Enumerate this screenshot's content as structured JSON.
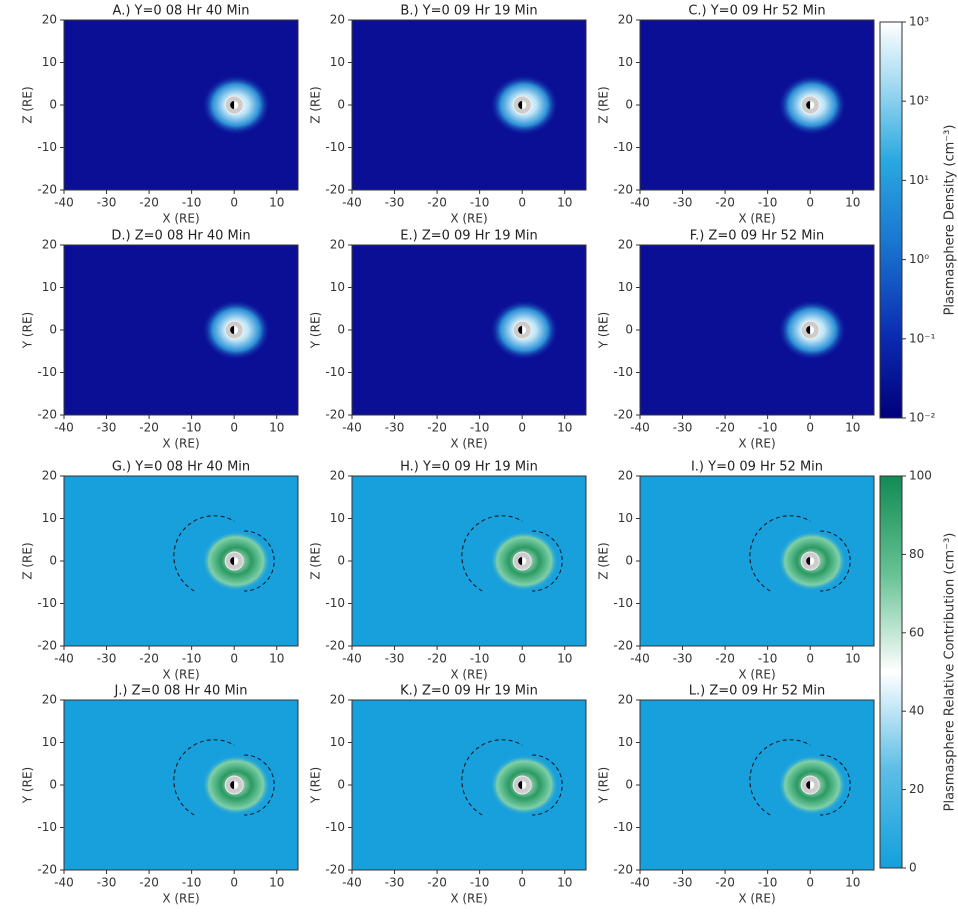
{
  "chart_data": [
    {
      "type": "heatmap",
      "title": "A.) Y=0  08 Hr 40 Min",
      "xlabel": "X (RE)",
      "ylabel": "Z (RE)",
      "xlim": [
        -40,
        15
      ],
      "ylim": [
        -20,
        20
      ],
      "xticks": [
        -40,
        -30,
        -20,
        -10,
        0,
        10
      ],
      "yticks": [
        -20,
        -10,
        0,
        10,
        20
      ],
      "colormap": "density"
    },
    {
      "type": "heatmap",
      "title": "B.) Y=0  09 Hr 19 Min",
      "xlabel": "X (RE)",
      "ylabel": "Z (RE)",
      "xlim": [
        -40,
        15
      ],
      "ylim": [
        -20,
        20
      ],
      "xticks": [
        -40,
        -30,
        -20,
        -10,
        0,
        10
      ],
      "yticks": [
        -20,
        -10,
        0,
        10,
        20
      ],
      "colormap": "density"
    },
    {
      "type": "heatmap",
      "title": "C.) Y=0  09 Hr 52 Min",
      "xlabel": "X (RE)",
      "ylabel": "Z (RE)",
      "xlim": [
        -40,
        15
      ],
      "ylim": [
        -20,
        20
      ],
      "xticks": [
        -40,
        -30,
        -20,
        -10,
        0,
        10
      ],
      "yticks": [
        -20,
        -10,
        0,
        10,
        20
      ],
      "colormap": "density"
    },
    {
      "type": "heatmap",
      "title": "D.) Z=0  08 Hr 40 Min",
      "xlabel": "X (RE)",
      "ylabel": "Y (RE)",
      "xlim": [
        -40,
        15
      ],
      "ylim": [
        -20,
        20
      ],
      "xticks": [
        -40,
        -30,
        -20,
        -10,
        0,
        10
      ],
      "yticks": [
        -20,
        -10,
        0,
        10,
        20
      ],
      "colormap": "density"
    },
    {
      "type": "heatmap",
      "title": "E.) Z=0  09 Hr 19 Min",
      "xlabel": "X (RE)",
      "ylabel": "Y (RE)",
      "xlim": [
        -40,
        15
      ],
      "ylim": [
        -20,
        20
      ],
      "xticks": [
        -40,
        -30,
        -20,
        -10,
        0,
        10
      ],
      "yticks": [
        -20,
        -10,
        0,
        10,
        20
      ],
      "colormap": "density"
    },
    {
      "type": "heatmap",
      "title": "F.) Z=0  09 Hr 52 Min",
      "xlabel": "X (RE)",
      "ylabel": "Y (RE)",
      "xlim": [
        -40,
        15
      ],
      "ylim": [
        -20,
        20
      ],
      "xticks": [
        -40,
        -30,
        -20,
        -10,
        0,
        10
      ],
      "yticks": [
        -20,
        -10,
        0,
        10,
        20
      ],
      "colormap": "density"
    },
    {
      "type": "heatmap",
      "title": "G.) Y=0  08 Hr 40 Min",
      "xlabel": "X (RE)",
      "ylabel": "Z (RE)",
      "xlim": [
        -40,
        15
      ],
      "ylim": [
        -20,
        20
      ],
      "xticks": [
        -40,
        -30,
        -20,
        -10,
        0,
        10
      ],
      "yticks": [
        -20,
        -10,
        0,
        10,
        20
      ],
      "colormap": "contribution"
    },
    {
      "type": "heatmap",
      "title": "H.) Y=0  09 Hr 19 Min",
      "xlabel": "X (RE)",
      "ylabel": "Z (RE)",
      "xlim": [
        -40,
        15
      ],
      "ylim": [
        -20,
        20
      ],
      "xticks": [
        -40,
        -30,
        -20,
        -10,
        0,
        10
      ],
      "yticks": [
        -20,
        -10,
        0,
        10,
        20
      ],
      "colormap": "contribution"
    },
    {
      "type": "heatmap",
      "title": "I.) Y=0  09 Hr 52 Min",
      "xlabel": "X (RE)",
      "ylabel": "Z (RE)",
      "xlim": [
        -40,
        15
      ],
      "ylim": [
        -20,
        20
      ],
      "xticks": [
        -40,
        -30,
        -20,
        -10,
        0,
        10
      ],
      "yticks": [
        -20,
        -10,
        0,
        10,
        20
      ],
      "colormap": "contribution"
    },
    {
      "type": "heatmap",
      "title": "J.) Z=0  08 Hr 40 Min",
      "xlabel": "X (RE)",
      "ylabel": "Y (RE)",
      "xlim": [
        -40,
        15
      ],
      "ylim": [
        -20,
        20
      ],
      "xticks": [
        -40,
        -30,
        -20,
        -10,
        0,
        10
      ],
      "yticks": [
        -20,
        -10,
        0,
        10,
        20
      ],
      "colormap": "contribution"
    },
    {
      "type": "heatmap",
      "title": "K.) Z=0  09 Hr 19 Min",
      "xlabel": "X (RE)",
      "ylabel": "Y (RE)",
      "xlim": [
        -40,
        15
      ],
      "ylim": [
        -20,
        20
      ],
      "xticks": [
        -40,
        -30,
        -20,
        -10,
        0,
        10
      ],
      "yticks": [
        -20,
        -10,
        0,
        10,
        20
      ],
      "colormap": "contribution"
    },
    {
      "type": "heatmap",
      "title": "L.) Z=0  09 Hr 52 Min",
      "xlabel": "X (RE)",
      "ylabel": "Y (RE)",
      "xlim": [
        -40,
        15
      ],
      "ylim": [
        -20,
        20
      ],
      "xticks": [
        -40,
        -30,
        -20,
        -10,
        0,
        10
      ],
      "yticks": [
        -20,
        -10,
        0,
        10,
        20
      ],
      "colormap": "contribution"
    },
    {
      "type": "colorbar",
      "label": "Plasmasphere Density (cm⁻³)",
      "log": true,
      "ylim": [
        0.01,
        1000
      ],
      "yticks": [
        {
          "value": 0.01,
          "label": "10⁻²"
        },
        {
          "value": 0.1,
          "label": "10⁻¹"
        },
        {
          "value": 1,
          "label": "10⁰"
        },
        {
          "value": 10,
          "label": "10¹"
        },
        {
          "value": 100,
          "label": "10²"
        },
        {
          "value": 1000,
          "label": "10³"
        }
      ],
      "colormap": "density"
    },
    {
      "type": "colorbar",
      "label": "Plasmasphere Relative Contribution (cm⁻³)",
      "log": false,
      "ylim": [
        0,
        100
      ],
      "yticks": [
        0,
        20,
        40,
        60,
        80,
        100
      ],
      "colormap": "contribution"
    }
  ]
}
